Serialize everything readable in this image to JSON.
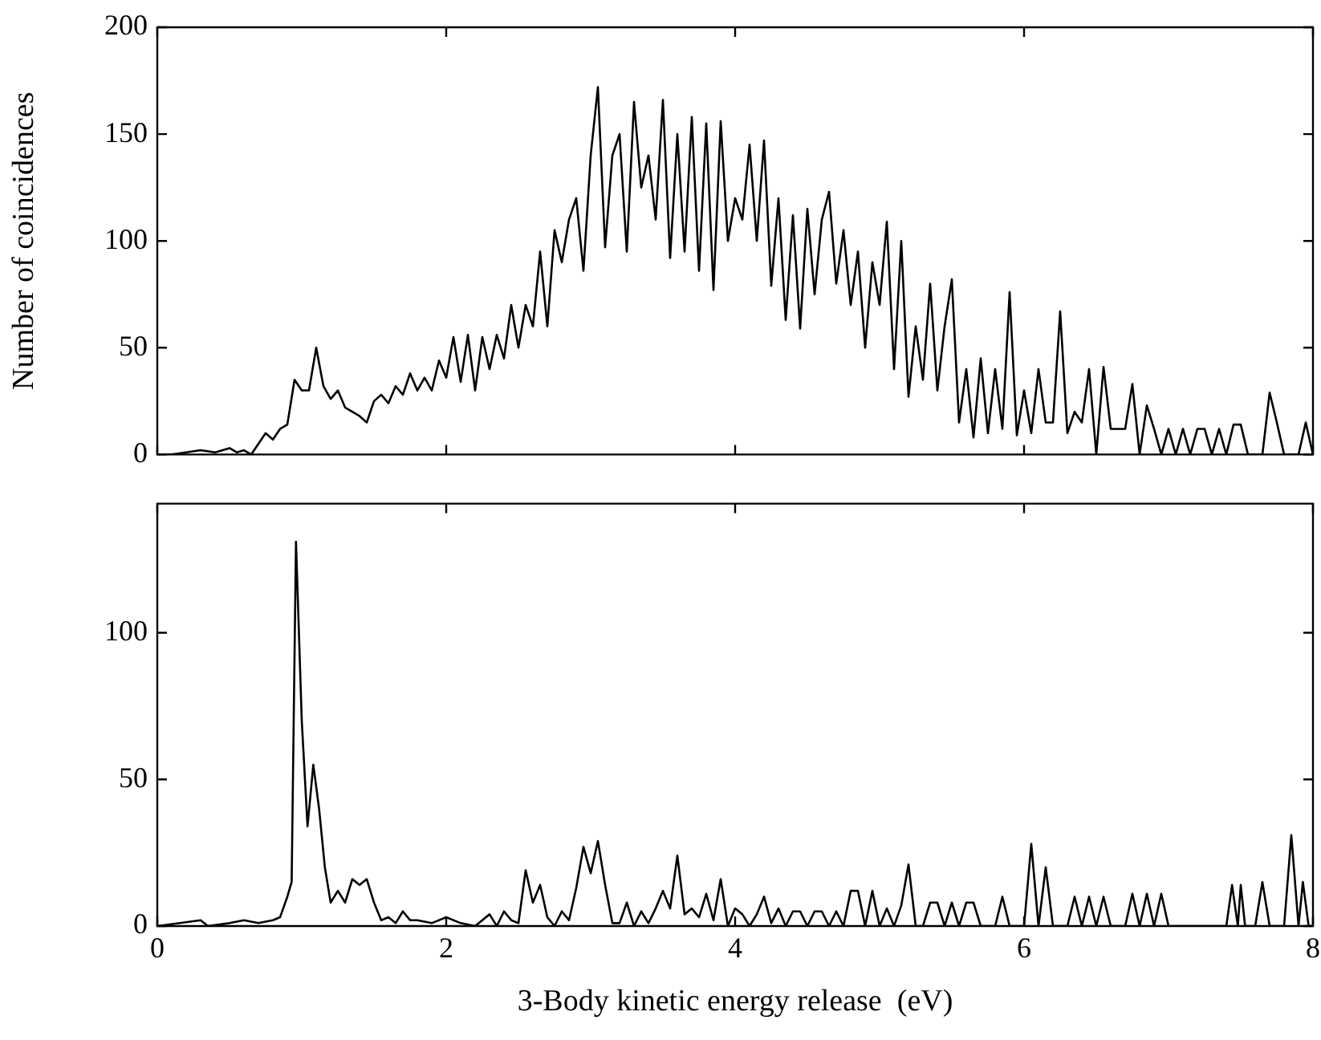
{
  "chart_data": [
    {
      "type": "line",
      "ylabel": "Number of coincidences",
      "xlim": [
        0,
        8
      ],
      "xticks": [
        0,
        2,
        4,
        6,
        8
      ],
      "ylim": [
        0,
        200
      ],
      "yticks": [
        0,
        50,
        100,
        150,
        200
      ],
      "tick_labels": "y",
      "grid": false,
      "legend": false,
      "marker": "none",
      "line_style": "solid",
      "series": [
        {
          "color": "#000000",
          "x": [
            0,
            0.1,
            0.2,
            0.3,
            0.4,
            0.5,
            0.55,
            0.6,
            0.65,
            0.7,
            0.75,
            0.8,
            0.85,
            0.9,
            0.95,
            1.0,
            1.05,
            1.1,
            1.15,
            1.2,
            1.25,
            1.3,
            1.4,
            1.45,
            1.5,
            1.55,
            1.6,
            1.65,
            1.7,
            1.75,
            1.8,
            1.85,
            1.9,
            1.95,
            2.0,
            2.05,
            2.1,
            2.15,
            2.2,
            2.25,
            2.3,
            2.35,
            2.4,
            2.45,
            2.5,
            2.55,
            2.6,
            2.65,
            2.7,
            2.75,
            2.8,
            2.85,
            2.9,
            2.95,
            3.0,
            3.05,
            3.1,
            3.15,
            3.2,
            3.25,
            3.3,
            3.35,
            3.4,
            3.45,
            3.5,
            3.55,
            3.6,
            3.65,
            3.7,
            3.75,
            3.8,
            3.85,
            3.9,
            3.95,
            4.0,
            4.05,
            4.1,
            4.15,
            4.2,
            4.25,
            4.3,
            4.35,
            4.4,
            4.45,
            4.5,
            4.55,
            4.6,
            4.65,
            4.7,
            4.75,
            4.8,
            4.85,
            4.9,
            4.95,
            5.0,
            5.05,
            5.1,
            5.15,
            5.2,
            5.25,
            5.3,
            5.35,
            5.4,
            5.45,
            5.5,
            5.55,
            5.6,
            5.65,
            5.7,
            5.75,
            5.8,
            5.85,
            5.9,
            5.95,
            6.0,
            6.05,
            6.1,
            6.15,
            6.2,
            6.25,
            6.3,
            6.35,
            6.4,
            6.45,
            6.5,
            6.55,
            6.6,
            6.65,
            6.7,
            6.75,
            6.8,
            6.85,
            6.9,
            6.95,
            7.0,
            7.05,
            7.1,
            7.15,
            7.2,
            7.25,
            7.3,
            7.35,
            7.4,
            7.45,
            7.5,
            7.55,
            7.6,
            7.65,
            7.7,
            7.75,
            7.8,
            7.85,
            7.9,
            7.95,
            8.0
          ],
          "values": [
            0,
            0,
            1,
            2,
            1,
            3,
            1,
            2,
            0,
            5,
            10,
            7,
            12,
            14,
            35,
            30,
            30,
            50,
            32,
            26,
            30,
            22,
            18,
            15,
            25,
            28,
            24,
            32,
            28,
            38,
            30,
            36,
            30,
            44,
            36,
            55,
            34,
            56,
            30,
            55,
            40,
            56,
            45,
            70,
            50,
            70,
            60,
            95,
            60,
            105,
            90,
            110,
            120,
            86,
            140,
            172,
            97,
            140,
            150,
            95,
            165,
            125,
            140,
            110,
            166,
            92,
            150,
            95,
            158,
            86,
            155,
            77,
            156,
            100,
            120,
            110,
            145,
            100,
            147,
            79,
            120,
            63,
            112,
            59,
            115,
            75,
            110,
            123,
            80,
            105,
            70,
            95,
            50,
            90,
            70,
            109,
            40,
            100,
            27,
            60,
            35,
            80,
            30,
            60,
            82,
            15,
            40,
            8,
            45,
            10,
            40,
            12,
            76,
            9,
            30,
            10,
            40,
            15,
            15,
            67,
            10,
            20,
            15,
            40,
            0,
            41,
            12,
            12,
            12,
            33,
            0,
            23,
            12,
            0,
            12,
            0,
            12,
            0,
            12,
            12,
            0,
            12,
            0,
            14,
            14,
            0,
            0,
            0,
            29,
            15,
            0,
            0,
            0,
            15,
            0
          ]
        }
      ]
    },
    {
      "type": "line",
      "xlabel": "3-Body kinetic energy release  (eV)",
      "xlim": [
        0,
        8
      ],
      "xticks": [
        0,
        2,
        4,
        6,
        8
      ],
      "ylim": [
        0,
        144
      ],
      "yticks": [
        0,
        50,
        100
      ],
      "grid": false,
      "legend": false,
      "marker": "none",
      "line_style": "solid",
      "series": [
        {
          "color": "#000000",
          "x": [
            0,
            0.3,
            0.35,
            0.5,
            0.6,
            0.7,
            0.8,
            0.85,
            0.9,
            0.93,
            0.96,
            1.0,
            1.04,
            1.08,
            1.12,
            1.16,
            1.2,
            1.25,
            1.3,
            1.35,
            1.4,
            1.45,
            1.5,
            1.55,
            1.6,
            1.65,
            1.7,
            1.75,
            1.8,
            1.9,
            2.0,
            2.1,
            2.2,
            2.3,
            2.35,
            2.4,
            2.45,
            2.5,
            2.55,
            2.6,
            2.65,
            2.7,
            2.75,
            2.8,
            2.85,
            2.9,
            2.95,
            3.0,
            3.05,
            3.1,
            3.15,
            3.2,
            3.25,
            3.3,
            3.35,
            3.4,
            3.45,
            3.5,
            3.55,
            3.6,
            3.65,
            3.7,
            3.75,
            3.8,
            3.85,
            3.9,
            3.95,
            4.0,
            4.05,
            4.1,
            4.15,
            4.2,
            4.25,
            4.3,
            4.35,
            4.4,
            4.45,
            4.5,
            4.55,
            4.6,
            4.65,
            4.7,
            4.75,
            4.8,
            4.85,
            4.9,
            4.95,
            5.0,
            5.05,
            5.1,
            5.15,
            5.2,
            5.25,
            5.3,
            5.35,
            5.4,
            5.45,
            5.5,
            5.55,
            5.6,
            5.65,
            5.7,
            5.8,
            5.85,
            5.9,
            6.0,
            6.05,
            6.1,
            6.15,
            6.2,
            6.3,
            6.35,
            6.4,
            6.45,
            6.5,
            6.55,
            6.6,
            6.7,
            6.75,
            6.8,
            6.85,
            6.9,
            6.95,
            7.0,
            7.4,
            7.44,
            7.48,
            7.5,
            7.53,
            7.6,
            7.65,
            7.7,
            7.8,
            7.85,
            7.9,
            7.93,
            7.97,
            8.0
          ],
          "values": [
            0,
            2,
            0,
            1,
            2,
            1,
            2,
            3,
            10,
            15,
            131,
            70,
            34,
            55,
            40,
            20,
            8,
            12,
            8,
            16,
            14,
            16,
            8,
            2,
            3,
            1,
            5,
            2,
            2,
            1,
            3,
            1,
            0,
            4,
            0,
            5,
            2,
            1,
            19,
            8,
            14,
            3,
            0,
            5,
            2,
            13,
            27,
            18,
            29,
            14,
            1,
            1,
            8,
            0,
            5,
            1,
            6,
            12,
            6,
            24,
            4,
            6,
            3,
            11,
            2,
            16,
            0,
            6,
            4,
            0,
            4,
            10,
            1,
            6,
            0,
            5,
            5,
            0,
            5,
            5,
            0,
            5,
            0,
            12,
            12,
            0,
            12,
            0,
            6,
            0,
            7,
            21,
            0,
            0,
            8,
            8,
            0,
            8,
            0,
            8,
            8,
            0,
            0,
            10,
            0,
            0,
            28,
            0,
            20,
            0,
            0,
            10,
            0,
            10,
            0,
            10,
            0,
            0,
            11,
            0,
            11,
            0,
            11,
            0,
            0,
            14,
            0,
            14,
            0,
            0,
            15,
            0,
            0,
            31,
            0,
            15,
            0,
            0
          ]
        }
      ]
    }
  ]
}
